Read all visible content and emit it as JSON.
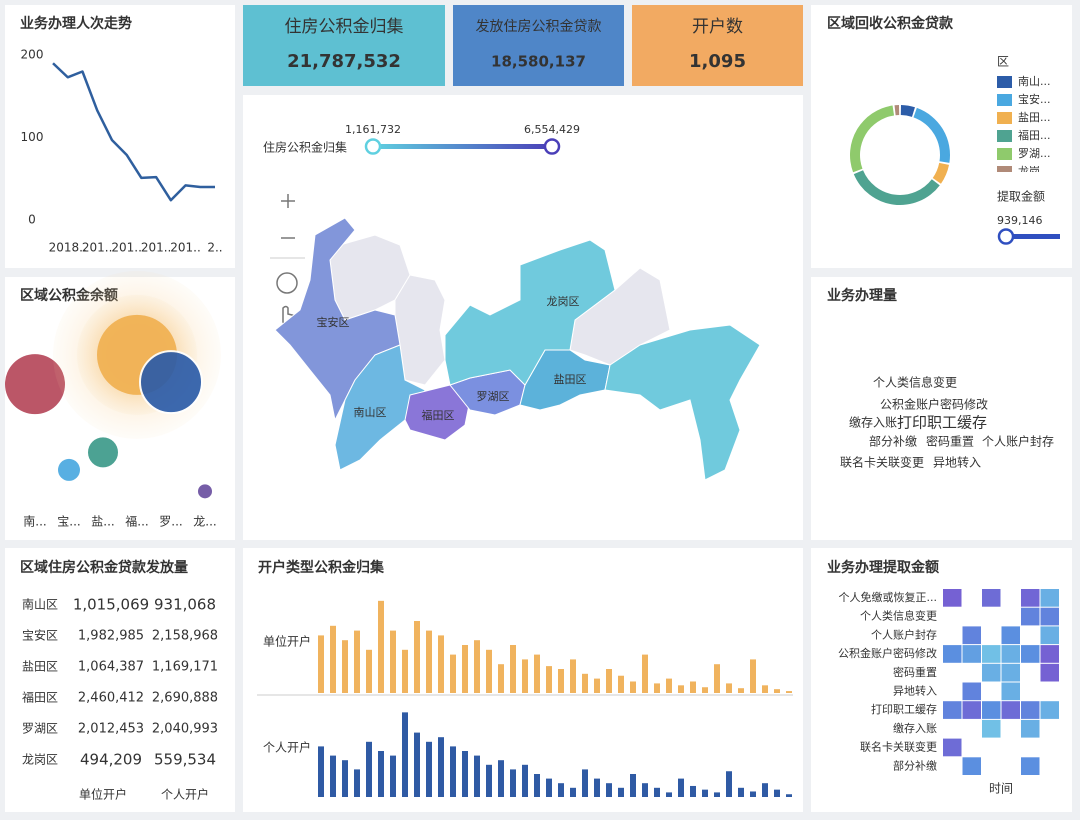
{
  "kpis": [
    {
      "label": "住房公积金归集",
      "value": "21,787,532",
      "color": "#5ec0d2"
    },
    {
      "label": "发放住房公积金贷款",
      "value": "18,580,137",
      "color": "#4f86c8"
    },
    {
      "label": "开户数",
      "value": "1,095",
      "color": "#f2aa62"
    }
  ],
  "map": {
    "slider_label": "住房公积金归集",
    "range": [
      "1,161,732",
      "6,554,429"
    ],
    "regions": [
      {
        "name": "宝安区",
        "color": "#8296da"
      },
      {
        "name": "南山区",
        "color": "#6db8e2"
      },
      {
        "name": "福田区",
        "color": "#8a76d8"
      },
      {
        "name": "罗湖区",
        "color": "#7b90e0"
      },
      {
        "name": "盐田区",
        "color": "#5cb2da"
      },
      {
        "name": "龙岗区",
        "color": "#70cadd"
      }
    ]
  },
  "word_cloud": {
    "title": "业务办理量",
    "words": [
      "个人类信息变更",
      "公积金账户密码修改",
      "缴存入账",
      "打印职工缓存",
      "部分补缴",
      "密码重置",
      "个人账户封存",
      "联名卡关联变更",
      "异地转入"
    ]
  },
  "table": {
    "title": "区域住房公积金贷款发放量",
    "columns": [
      "单位开户",
      "个人开户"
    ],
    "rows": [
      [
        "南山区",
        "1,015,069",
        "931,068"
      ],
      [
        "宝安区",
        "1,982,985",
        "2,158,968"
      ],
      [
        "盐田区",
        "1,064,387",
        "1,169,171"
      ],
      [
        "福田区",
        "2,460,412",
        "2,690,888"
      ],
      [
        "罗湖区",
        "2,012,453",
        "2,040,993"
      ],
      [
        "龙岗区",
        "494,209",
        "559,534"
      ]
    ],
    "row_colors": [
      "#2d3d6b",
      "#e9a342",
      "#4aa6d8",
      "#3ea48e",
      "#b2344f",
      "#2d3d6b"
    ]
  },
  "chart_data": [
    {
      "type": "line",
      "title": "业务办理人次走势",
      "categories": [
        null,
        "2018..",
        null,
        "201..",
        null,
        "201..",
        null,
        "201..",
        null,
        "201..",
        null,
        "2.."
      ],
      "values": [
        190,
        173,
        180,
        133,
        97,
        79,
        51,
        52,
        24,
        42,
        40,
        40
      ],
      "color": "#2f5f9e",
      "ylim": [
        0,
        200
      ],
      "yticks": [
        0,
        100,
        200
      ],
      "grid": false
    },
    {
      "type": "bubble",
      "title": "区域公积金余额",
      "categories": [
        "南...",
        "宝...",
        "盐...",
        "福...",
        "罗...",
        "龙..."
      ],
      "values": [
        62,
        18,
        27,
        77,
        63,
        7
      ],
      "sizes": [
        900,
        121,
        225,
        1600,
        961,
        49
      ],
      "colors": [
        "#b5485a",
        "#4aa8e0",
        "#3d9a8a",
        "#f0b050",
        "#2c5ca8",
        "#6a4fa0"
      ],
      "ylim": [
        0,
        100
      ]
    },
    {
      "type": "bar",
      "title": "开户类型公积金归集",
      "series": [
        {
          "name": "单位开户",
          "color": "#f0b35e",
          "values": [
            60,
            70,
            55,
            65,
            45,
            96,
            65,
            45,
            75,
            65,
            60,
            40,
            50,
            55,
            45,
            30,
            50,
            35,
            40,
            28,
            25,
            35,
            20,
            15,
            25,
            18,
            12,
            40,
            10,
            15,
            8,
            12,
            6,
            30,
            10,
            5,
            35,
            8,
            4,
            2
          ]
        },
        {
          "name": "个人开户",
          "color": "#2f5aa4",
          "values": [
            55,
            45,
            40,
            30,
            60,
            50,
            45,
            92,
            70,
            60,
            65,
            55,
            50,
            45,
            35,
            40,
            30,
            35,
            25,
            20,
            15,
            10,
            30,
            20,
            15,
            10,
            25,
            15,
            10,
            5,
            20,
            12,
            8,
            5,
            28,
            10,
            6,
            15,
            8,
            3
          ]
        }
      ],
      "ylim": [
        0,
        100
      ]
    },
    {
      "type": "heatmap",
      "title": "业务办理提取金额",
      "categories": [
        "个人免缴或恢复正...",
        "个人类信息变更",
        "个人账户封存",
        "公积金账户密码修改",
        "密码重置",
        "异地转入",
        "打印职工缓存",
        "缴存入账",
        "联名卡关联变更",
        "部分补缴"
      ],
      "x_label": "时间",
      "values": [
        [
          0.9,
          null,
          0.8,
          null,
          0.85,
          0.3
        ],
        [
          null,
          null,
          null,
          null,
          0.6,
          0.6
        ],
        [
          null,
          0.6,
          null,
          0.5,
          null,
          0.3
        ],
        [
          0.5,
          0.4,
          0.2,
          0.3,
          0.5,
          0.9
        ],
        [
          null,
          null,
          0.3,
          0.3,
          null,
          0.9
        ],
        [
          null,
          0.6,
          null,
          0.3,
          null,
          null
        ],
        [
          0.6,
          0.8,
          0.5,
          0.8,
          0.6,
          0.3
        ],
        [
          null,
          null,
          0.2,
          null,
          0.3,
          null
        ],
        [
          0.8,
          null,
          null,
          null,
          null,
          null
        ],
        [
          null,
          0.5,
          null,
          null,
          0.5,
          null
        ]
      ],
      "zlim": [
        0,
        1
      ],
      "colors": [
        "#7fe0ea",
        "#5b8fe0",
        "#7b55d0"
      ]
    },
    {
      "type": "donut",
      "title": "区域回收公积金贷款",
      "legend_title": "区",
      "categories": [
        "南山...",
        "宝安...",
        "盐田...",
        "福田...",
        "罗湖...",
        "龙岗"
      ],
      "values": [
        5,
        22,
        7,
        33,
        28,
        2
      ],
      "colors": [
        "#2c5ca8",
        "#4aa8e0",
        "#f0b050",
        "#4fa391",
        "#8fca6c",
        "#b08a78"
      ],
      "slider_label": "提取金额",
      "slider_value": "939,146"
    }
  ]
}
